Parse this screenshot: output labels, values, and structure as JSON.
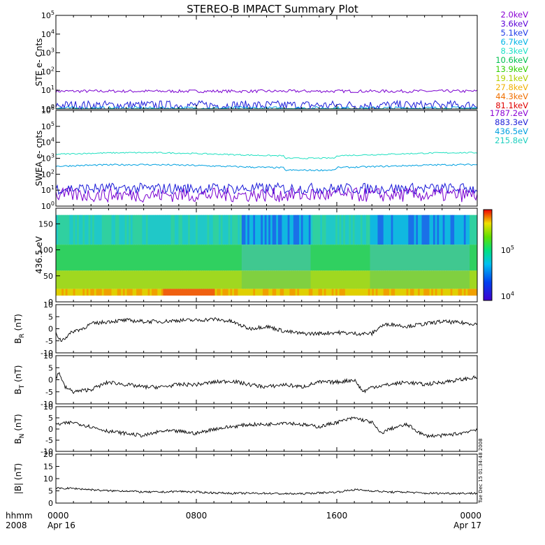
{
  "title": "STEREO-B IMPACT Summary Plot",
  "footer": {
    "time_label": "hhmm",
    "year_label": "2008",
    "ticks": [
      "0000",
      "0800",
      "1600",
      "0000"
    ],
    "dates": [
      "Apr 16",
      "",
      "",
      "Apr 17"
    ],
    "stamp": "Tue Dec 15 01:34:48 2008"
  },
  "chart_data": [
    {
      "type": "line",
      "ylabel": "STE e- Cnts",
      "ylog": true,
      "ylim_exp": [
        0,
        5
      ],
      "yticks": [
        "10^0",
        "10^1",
        "10^2",
        "10^3",
        "10^4",
        "10^5"
      ],
      "legend": [
        "2.0keV",
        "3.6keV",
        "5.1keV",
        "6.7keV",
        "8.3keV",
        "10.6keV",
        "13.9keV",
        "19.1keV",
        "27.8keV",
        "44.3keV",
        "81.1keV"
      ],
      "legend_colors": [
        "#8a00d4",
        "#5b00d8",
        "#1f3ce8",
        "#00b4e6",
        "#1fe0c8",
        "#00c050",
        "#30d000",
        "#b0d000",
        "#f0b000",
        "#f07000",
        "#e00000"
      ],
      "x_hours": [
        0,
        24
      ],
      "series": [
        {
          "color": "#7a00d0",
          "level_exp": 0.95,
          "noise": 0.08
        },
        {
          "color": "#1a1ad8",
          "level_exp": 0.2,
          "noise": 0.25
        },
        {
          "color": "#00a0e0",
          "level_exp": 0.05,
          "noise": 0.08
        },
        {
          "color": "#20e0b0",
          "level_exp": 0.0,
          "noise": 0.03
        }
      ]
    },
    {
      "type": "line",
      "ylabel": "SWEA e- cnts",
      "ylog": true,
      "ylim_exp": [
        0,
        6
      ],
      "yticks": [
        "10^0",
        "10^1",
        "10^2",
        "10^3",
        "10^4",
        "10^5",
        "10^6"
      ],
      "legend": [
        "1787.2eV",
        "883.3eV",
        "436.5eV",
        "215.8eV"
      ],
      "legend_colors": [
        "#8a00d4",
        "#1f1fd8",
        "#00a0e0",
        "#20d0c0"
      ],
      "x_hours": [
        0,
        24
      ],
      "series": [
        {
          "color": "#20e0c0",
          "level_exp": 3.25,
          "noise": 0.04
        },
        {
          "color": "#00a0e0",
          "level_exp": 2.5,
          "noise": 0.05
        },
        {
          "color": "#1a1ad8",
          "level_exp": 1.1,
          "noise": 0.35
        },
        {
          "color": "#7a00d0",
          "level_exp": 0.7,
          "noise": 0.45
        }
      ]
    },
    {
      "type": "heatmap",
      "ylabel": "436.5 eV",
      "ylim": [
        0,
        180
      ],
      "yticks": [
        0,
        50,
        100,
        150
      ],
      "colorbar_labels": [
        "10^4",
        "10^5"
      ],
      "x_hours": [
        0,
        24
      ]
    },
    {
      "type": "line",
      "ylabel": "B",
      "ylabel_sub": "R",
      "ylabel_unit": "(nT)",
      "ylim": [
        -10,
        10
      ],
      "yticks": [
        -10,
        -5,
        0,
        5,
        10
      ],
      "trace": [
        [
          0,
          -2
        ],
        [
          0.3,
          -5
        ],
        [
          1,
          -1
        ],
        [
          1.5,
          0
        ],
        [
          2,
          2
        ],
        [
          3,
          3
        ],
        [
          4,
          3.5
        ],
        [
          5,
          3
        ],
        [
          6,
          3
        ],
        [
          7,
          3.5
        ],
        [
          8,
          3.5
        ],
        [
          9,
          4
        ],
        [
          10,
          3
        ],
        [
          11,
          0
        ],
        [
          12,
          1
        ],
        [
          13,
          -1
        ],
        [
          14,
          -2
        ],
        [
          15,
          -2
        ],
        [
          16,
          -1.5
        ],
        [
          17,
          -2
        ],
        [
          18,
          -2
        ],
        [
          18.5,
          1
        ],
        [
          19,
          2
        ],
        [
          20,
          1
        ],
        [
          21,
          2
        ],
        [
          22,
          3
        ],
        [
          23,
          2.5
        ],
        [
          24,
          2
        ]
      ]
    },
    {
      "type": "line",
      "ylabel": "B",
      "ylabel_sub": "T",
      "ylabel_unit": "(nT)",
      "ylim": [
        -10,
        10
      ],
      "yticks": [
        -10,
        -5,
        0,
        5,
        10
      ],
      "trace": [
        [
          0,
          1
        ],
        [
          0.2,
          3
        ],
        [
          0.5,
          -3
        ],
        [
          1,
          -5
        ],
        [
          2,
          -4
        ],
        [
          3,
          -1
        ],
        [
          4,
          -2
        ],
        [
          5,
          -3
        ],
        [
          6,
          -3
        ],
        [
          7,
          -2
        ],
        [
          8,
          -2
        ],
        [
          9,
          -1
        ],
        [
          10,
          -0.5
        ],
        [
          11,
          -2
        ],
        [
          12,
          -3
        ],
        [
          13,
          -2
        ],
        [
          14,
          -3
        ],
        [
          15,
          -1
        ],
        [
          16,
          -1
        ],
        [
          17,
          0
        ],
        [
          17.5,
          -5
        ],
        [
          18,
          -3
        ],
        [
          19,
          -2
        ],
        [
          20,
          -1
        ],
        [
          21,
          -2
        ],
        [
          22,
          -1
        ],
        [
          23,
          0
        ],
        [
          24,
          1
        ]
      ]
    },
    {
      "type": "line",
      "ylabel": "B",
      "ylabel_sub": "N",
      "ylabel_unit": "(nT)",
      "ylim": [
        -10,
        10
      ],
      "yticks": [
        -10,
        -5,
        0,
        5,
        10
      ],
      "trace": [
        [
          0,
          2
        ],
        [
          1,
          3
        ],
        [
          2,
          1
        ],
        [
          3,
          -1
        ],
        [
          4,
          -2
        ],
        [
          5,
          -3
        ],
        [
          6,
          -1
        ],
        [
          7,
          -1
        ],
        [
          8,
          -2
        ],
        [
          9,
          0
        ],
        [
          10,
          1
        ],
        [
          11,
          2
        ],
        [
          12,
          2
        ],
        [
          13,
          3
        ],
        [
          14,
          2
        ],
        [
          15,
          1
        ],
        [
          16,
          3
        ],
        [
          17,
          5
        ],
        [
          18,
          3
        ],
        [
          18.5,
          -2
        ],
        [
          19,
          0
        ],
        [
          20,
          2
        ],
        [
          21,
          -3
        ],
        [
          22,
          -3
        ],
        [
          23,
          -2
        ],
        [
          24,
          0
        ]
      ]
    },
    {
      "type": "line",
      "ylabel": "|B|",
      "ylabel_unit": "(nT)",
      "ylim": [
        0,
        20
      ],
      "yticks": [
        0,
        5,
        10,
        15,
        20
      ],
      "trace": [
        [
          0,
          6
        ],
        [
          1,
          6
        ],
        [
          2,
          5.5
        ],
        [
          3,
          5
        ],
        [
          4,
          5
        ],
        [
          5,
          4.5
        ],
        [
          6,
          4.5
        ],
        [
          7,
          4.8
        ],
        [
          8,
          4.5
        ],
        [
          9,
          4.2
        ],
        [
          10,
          4
        ],
        [
          11,
          4
        ],
        [
          12,
          4
        ],
        [
          13,
          3.8
        ],
        [
          14,
          3.8
        ],
        [
          15,
          4.2
        ],
        [
          16,
          4.5
        ],
        [
          17,
          5.5
        ],
        [
          18,
          5
        ],
        [
          19,
          4.5
        ],
        [
          20,
          4.5
        ],
        [
          21,
          4
        ],
        [
          22,
          4
        ],
        [
          23,
          4
        ],
        [
          24,
          4
        ]
      ]
    }
  ]
}
